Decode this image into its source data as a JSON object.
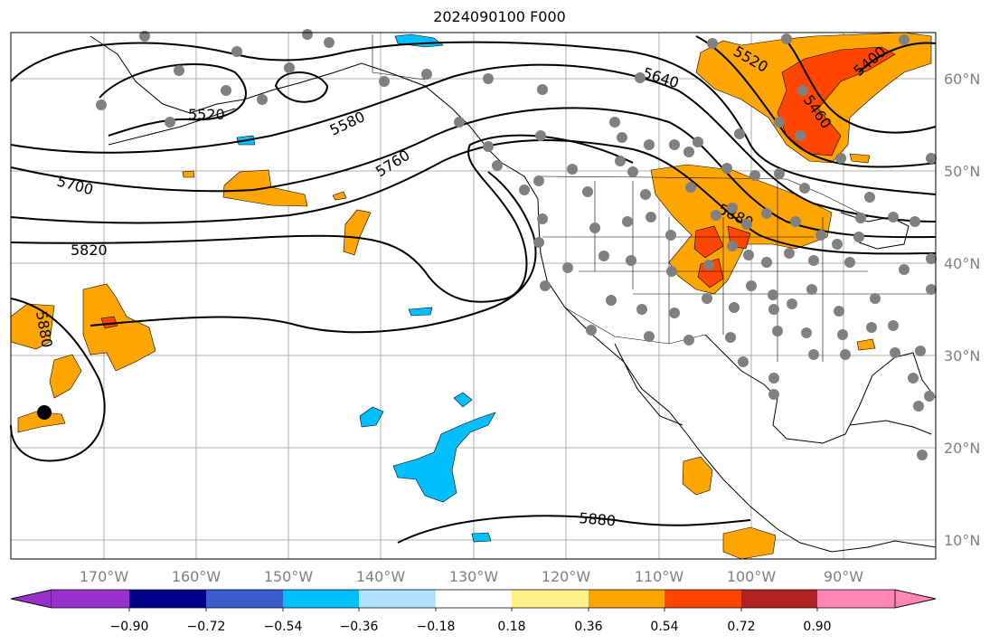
{
  "title": "2024090100 F000",
  "map": {
    "lon_ticks": [
      "170°W",
      "160°W",
      "150°W",
      "140°W",
      "130°W",
      "120°W",
      "110°W",
      "100°W",
      "90°W"
    ],
    "lat_ticks": [
      "60°N",
      "50°N",
      "40°N",
      "30°N",
      "20°N",
      "10°N"
    ],
    "contour_labels": [
      "5520",
      "5580",
      "5760",
      "5700",
      "5820",
      "5880",
      "5640",
      "5520",
      "5400",
      "5460",
      "5880",
      "5880"
    ],
    "station_marker": "black-dot"
  },
  "colorbar": {
    "ticks": [
      "−0.90",
      "−0.72",
      "−0.54",
      "−0.36",
      "−0.18",
      "0.18",
      "0.36",
      "0.54",
      "0.72",
      "0.90"
    ],
    "colors": [
      "#9932cc",
      "#00008b",
      "#3a5fcd",
      "#00bfff",
      "#b0e2ff",
      "#ffffff",
      "#fff08a",
      "#ffa500",
      "#ff4500",
      "#b22222",
      "#ff86b5"
    ],
    "extend_low_color": "#9932cc",
    "extend_high_color": "#ff86b5"
  }
}
